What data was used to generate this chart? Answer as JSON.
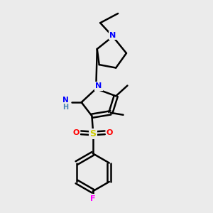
{
  "bg_color": "#ebebeb",
  "atom_colors": {
    "N": "#0000ff",
    "O": "#ff0000",
    "S": "#cccc00",
    "F": "#ff00ff",
    "H": "#5f9ea0",
    "C": "#000000"
  },
  "bond_color": "#000000",
  "bond_width": 1.8,
  "title": ""
}
